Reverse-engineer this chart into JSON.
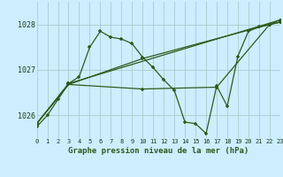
{
  "xlabel": "Graphe pression niveau de la mer (hPa)",
  "background_color": "#cceeff",
  "grid_color": "#aacccc",
  "line_color": "#2d5a1b",
  "marker": "+",
  "ylim": [
    1025.5,
    1028.5
  ],
  "xlim": [
    0,
    23
  ],
  "yticks": [
    1026,
    1027,
    1028
  ],
  "xticks": [
    0,
    1,
    2,
    3,
    4,
    5,
    6,
    7,
    8,
    9,
    10,
    11,
    12,
    13,
    14,
    15,
    16,
    17,
    18,
    19,
    20,
    21,
    22,
    23
  ],
  "series1_x": [
    0,
    1,
    2,
    3,
    4,
    5,
    6,
    7,
    8,
    9,
    10,
    11,
    12,
    13,
    14,
    15,
    16,
    17,
    18,
    19,
    20,
    21,
    22,
    23
  ],
  "series1_y": [
    1025.75,
    1026.0,
    1026.35,
    1026.7,
    1026.85,
    1027.5,
    1027.85,
    1027.72,
    1027.68,
    1027.58,
    1027.28,
    1027.05,
    1026.78,
    1026.55,
    1025.85,
    1025.82,
    1025.6,
    1026.65,
    1026.2,
    1027.3,
    1027.85,
    1027.95,
    1028.0,
    1028.1
  ],
  "series2_x": [
    0,
    3,
    23
  ],
  "series2_y": [
    1025.82,
    1026.7,
    1028.1
  ],
  "series3_x": [
    0,
    3,
    10,
    22,
    23
  ],
  "series3_y": [
    1025.82,
    1026.68,
    1027.25,
    1028.0,
    1028.05
  ],
  "series4_x": [
    0,
    3,
    10,
    17,
    22,
    23
  ],
  "series4_y": [
    1025.82,
    1026.68,
    1026.58,
    1026.62,
    1028.0,
    1028.05
  ]
}
